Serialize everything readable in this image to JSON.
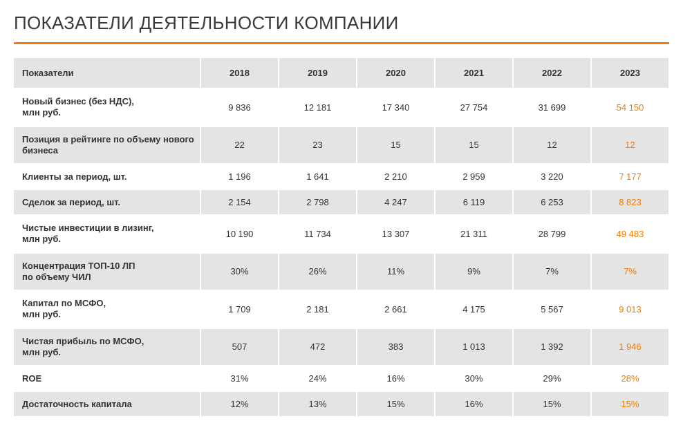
{
  "title": "ПОКАЗАТЕЛИ ДЕЯТЕЛЬНОСТИ КОМПАНИИ",
  "accent_color": "#ef7d00",
  "header_bg": "#e4e4e4",
  "text_color": "#333333",
  "highlight_color": "#ef7d00",
  "table": {
    "header_label": "Показатели",
    "years": [
      "2018",
      "2019",
      "2020",
      "2021",
      "2022",
      "2023"
    ],
    "highlight_column_index": 5,
    "rows": [
      {
        "label": "Новый бизнес (без НДС),\nмлн руб.",
        "values": [
          "9 836",
          "12 181",
          "17 340",
          "27 754",
          "31 699",
          "54 150"
        ],
        "shaded": false,
        "multiline": true
      },
      {
        "label": "Позиция в рейтинге по объему нового бизнеса",
        "values": [
          "22",
          "23",
          "15",
          "15",
          "12",
          "12"
        ],
        "shaded": true,
        "multiline": true
      },
      {
        "label": "Клиенты за период, шт.",
        "values": [
          "1 196",
          "1 641",
          "2 210",
          "2 959",
          "3 220",
          "7 177"
        ],
        "shaded": false,
        "multiline": false
      },
      {
        "label": "Сделок за период, шт.",
        "values": [
          "2 154",
          "2 798",
          "4 247",
          "6 119",
          "6 253",
          "8 823"
        ],
        "shaded": true,
        "multiline": false
      },
      {
        "label": "Чистые инвестиции в лизинг,\nмлн руб.",
        "values": [
          "10 190",
          "11 734",
          "13 307",
          "21 311",
          "28 799",
          "49 483"
        ],
        "shaded": false,
        "multiline": true
      },
      {
        "label": "Концентрация ТОП-10 ЛП\nпо объему ЧИЛ",
        "values": [
          "30%",
          "26%",
          "11%",
          "9%",
          "7%",
          "7%"
        ],
        "shaded": true,
        "multiline": true
      },
      {
        "label": "Капитал по МСФО,\nмлн руб.",
        "values": [
          "1 709",
          "2 181",
          "2 661",
          "4 175",
          "5 567",
          "9 013"
        ],
        "shaded": false,
        "multiline": true
      },
      {
        "label": "Чистая прибыль по МСФО,\nмлн руб.",
        "values": [
          "507",
          "472",
          "383",
          "1 013",
          "1 392",
          "1 946"
        ],
        "shaded": true,
        "multiline": true
      },
      {
        "label": "ROE",
        "values": [
          "31%",
          "24%",
          "16%",
          "30%",
          "29%",
          "28%"
        ],
        "shaded": false,
        "multiline": false
      },
      {
        "label": "Достаточность капитала",
        "values": [
          "12%",
          "13%",
          "15%",
          "16%",
          "15%",
          "15%"
        ],
        "shaded": true,
        "multiline": false
      }
    ]
  }
}
